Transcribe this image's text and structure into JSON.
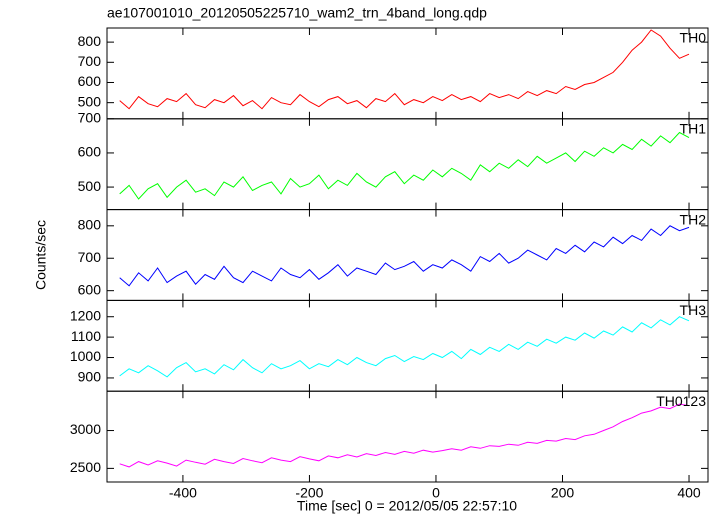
{
  "chart_data": [
    {
      "type": "line",
      "title": "ae107001010_20120505225710_wam2_trn_4band_long.qdp",
      "x": [
        -500,
        -485,
        -470,
        -455,
        -440,
        -425,
        -410,
        -395,
        -380,
        -365,
        -350,
        -335,
        -320,
        -305,
        -290,
        -275,
        -260,
        -245,
        -230,
        -215,
        -200,
        -185,
        -170,
        -155,
        -140,
        -125,
        -110,
        -95,
        -80,
        -65,
        -50,
        -35,
        -20,
        -5,
        10,
        25,
        40,
        55,
        70,
        85,
        100,
        115,
        130,
        145,
        160,
        175,
        190,
        205,
        220,
        235,
        250,
        265,
        280,
        295,
        310,
        325,
        340,
        355,
        370,
        385,
        400
      ],
      "xlim": [
        -520,
        430
      ],
      "ylim": [
        420,
        870
      ],
      "yticks": [
        500,
        600,
        700,
        800
      ],
      "series": [
        {
          "name": "TH0",
          "color": "#ff0000",
          "values": [
            510,
            470,
            530,
            495,
            480,
            520,
            505,
            545,
            490,
            475,
            515,
            500,
            535,
            485,
            510,
            470,
            525,
            500,
            490,
            540,
            505,
            480,
            515,
            530,
            495,
            510,
            475,
            520,
            505,
            545,
            490,
            515,
            500,
            530,
            510,
            540,
            515,
            530,
            505,
            545,
            525,
            540,
            520,
            555,
            535,
            560,
            545,
            580,
            565,
            590,
            600,
            625,
            650,
            700,
            760,
            800,
            860,
            830,
            770,
            720,
            740
          ]
        }
      ]
    },
    {
      "type": "line",
      "x": [
        -500,
        -485,
        -470,
        -455,
        -440,
        -425,
        -410,
        -395,
        -380,
        -365,
        -350,
        -335,
        -320,
        -305,
        -290,
        -275,
        -260,
        -245,
        -230,
        -215,
        -200,
        -185,
        -170,
        -155,
        -140,
        -125,
        -110,
        -95,
        -80,
        -65,
        -50,
        -35,
        -20,
        -5,
        10,
        25,
        40,
        55,
        70,
        85,
        100,
        115,
        130,
        145,
        160,
        175,
        190,
        205,
        220,
        235,
        250,
        265,
        280,
        295,
        310,
        325,
        340,
        355,
        370,
        385,
        400
      ],
      "xlim": [
        -520,
        430
      ],
      "ylim": [
        434,
        700
      ],
      "yticks": [
        500,
        600,
        700
      ],
      "series": [
        {
          "name": "TH1",
          "color": "#00ff00",
          "values": [
            480,
            505,
            465,
            495,
            510,
            470,
            500,
            520,
            485,
            495,
            475,
            515,
            500,
            530,
            490,
            505,
            515,
            480,
            525,
            500,
            510,
            535,
            495,
            520,
            505,
            540,
            515,
            500,
            530,
            545,
            510,
            535,
            520,
            550,
            530,
            555,
            540,
            520,
            565,
            545,
            570,
            555,
            580,
            560,
            590,
            570,
            585,
            600,
            575,
            605,
            590,
            615,
            600,
            625,
            610,
            640,
            620,
            650,
            630,
            660,
            645
          ]
        }
      ]
    },
    {
      "type": "line",
      "ylabel": "Counts/sec",
      "x": [
        -500,
        -485,
        -470,
        -455,
        -440,
        -425,
        -410,
        -395,
        -380,
        -365,
        -350,
        -335,
        -320,
        -305,
        -290,
        -275,
        -260,
        -245,
        -230,
        -215,
        -200,
        -185,
        -170,
        -155,
        -140,
        -125,
        -110,
        -95,
        -80,
        -65,
        -50,
        -35,
        -20,
        -5,
        10,
        25,
        40,
        55,
        70,
        85,
        100,
        115,
        130,
        145,
        160,
        175,
        190,
        205,
        220,
        235,
        250,
        265,
        280,
        295,
        310,
        325,
        340,
        355,
        370,
        385,
        400
      ],
      "xlim": [
        -520,
        430
      ],
      "ylim": [
        570,
        850
      ],
      "yticks": [
        600,
        700,
        800
      ],
      "series": [
        {
          "name": "TH2",
          "color": "#0000ff",
          "values": [
            640,
            615,
            655,
            630,
            670,
            625,
            645,
            660,
            620,
            650,
            635,
            675,
            640,
            625,
            660,
            645,
            630,
            670,
            650,
            640,
            665,
            635,
            655,
            680,
            645,
            670,
            660,
            650,
            685,
            665,
            675,
            690,
            660,
            680,
            670,
            695,
            680,
            660,
            705,
            690,
            715,
            685,
            700,
            725,
            710,
            695,
            730,
            715,
            740,
            720,
            750,
            735,
            765,
            745,
            770,
            755,
            790,
            770,
            800,
            785,
            795
          ]
        }
      ]
    },
    {
      "type": "line",
      "x": [
        -500,
        -485,
        -470,
        -455,
        -440,
        -425,
        -410,
        -395,
        -380,
        -365,
        -350,
        -335,
        -320,
        -305,
        -290,
        -275,
        -260,
        -245,
        -230,
        -215,
        -200,
        -185,
        -170,
        -155,
        -140,
        -125,
        -110,
        -95,
        -80,
        -65,
        -50,
        -35,
        -20,
        -5,
        10,
        25,
        40,
        55,
        70,
        85,
        100,
        115,
        130,
        145,
        160,
        175,
        190,
        205,
        220,
        235,
        250,
        265,
        280,
        295,
        310,
        325,
        340,
        355,
        370,
        385,
        400
      ],
      "xlim": [
        -520,
        430
      ],
      "ylim": [
        835,
        1280
      ],
      "yticks": [
        900,
        1000,
        1100,
        1200
      ],
      "series": [
        {
          "name": "TH3",
          "color": "#00ffff",
          "values": [
            910,
            945,
            925,
            960,
            935,
            905,
            950,
            975,
            930,
            945,
            920,
            965,
            940,
            990,
            950,
            925,
            970,
            945,
            960,
            985,
            945,
            970,
            955,
            990,
            965,
            1000,
            975,
            960,
            995,
            1010,
            980,
            1005,
            990,
            1020,
            1000,
            1030,
            995,
            1040,
            1015,
            1050,
            1030,
            1065,
            1040,
            1075,
            1055,
            1090,
            1070,
            1100,
            1085,
            1120,
            1095,
            1130,
            1110,
            1150,
            1125,
            1170,
            1145,
            1185,
            1160,
            1200,
            1180
          ]
        }
      ]
    },
    {
      "type": "line",
      "xlabel": "Time [sec] 0 = 2012/05/05 22:57:10",
      "x": [
        -500,
        -485,
        -470,
        -455,
        -440,
        -425,
        -410,
        -395,
        -380,
        -365,
        -350,
        -335,
        -320,
        -305,
        -290,
        -275,
        -260,
        -245,
        -230,
        -215,
        -200,
        -185,
        -170,
        -155,
        -140,
        -125,
        -110,
        -95,
        -80,
        -65,
        -50,
        -35,
        -20,
        -5,
        10,
        25,
        40,
        55,
        70,
        85,
        100,
        115,
        130,
        145,
        160,
        175,
        190,
        205,
        220,
        235,
        250,
        265,
        280,
        295,
        310,
        325,
        340,
        355,
        370,
        385,
        400
      ],
      "xlim": [
        -520,
        430
      ],
      "xticks": [
        -400,
        -200,
        0,
        200,
        400
      ],
      "ylim": [
        2320,
        3520
      ],
      "yticks": [
        2500,
        3000
      ],
      "series": [
        {
          "name": "TH0123",
          "color": "#ff00ff",
          "values": [
            2560,
            2520,
            2590,
            2545,
            2600,
            2570,
            2530,
            2610,
            2580,
            2555,
            2620,
            2590,
            2565,
            2630,
            2600,
            2575,
            2640,
            2610,
            2590,
            2655,
            2625,
            2600,
            2665,
            2640,
            2680,
            2650,
            2695,
            2670,
            2710,
            2685,
            2725,
            2700,
            2740,
            2715,
            2735,
            2760,
            2740,
            2785,
            2765,
            2800,
            2790,
            2820,
            2805,
            2845,
            2830,
            2870,
            2860,
            2895,
            2880,
            2930,
            2950,
            3000,
            3050,
            3120,
            3170,
            3230,
            3260,
            3310,
            3290,
            3350,
            3330
          ]
        }
      ]
    }
  ]
}
